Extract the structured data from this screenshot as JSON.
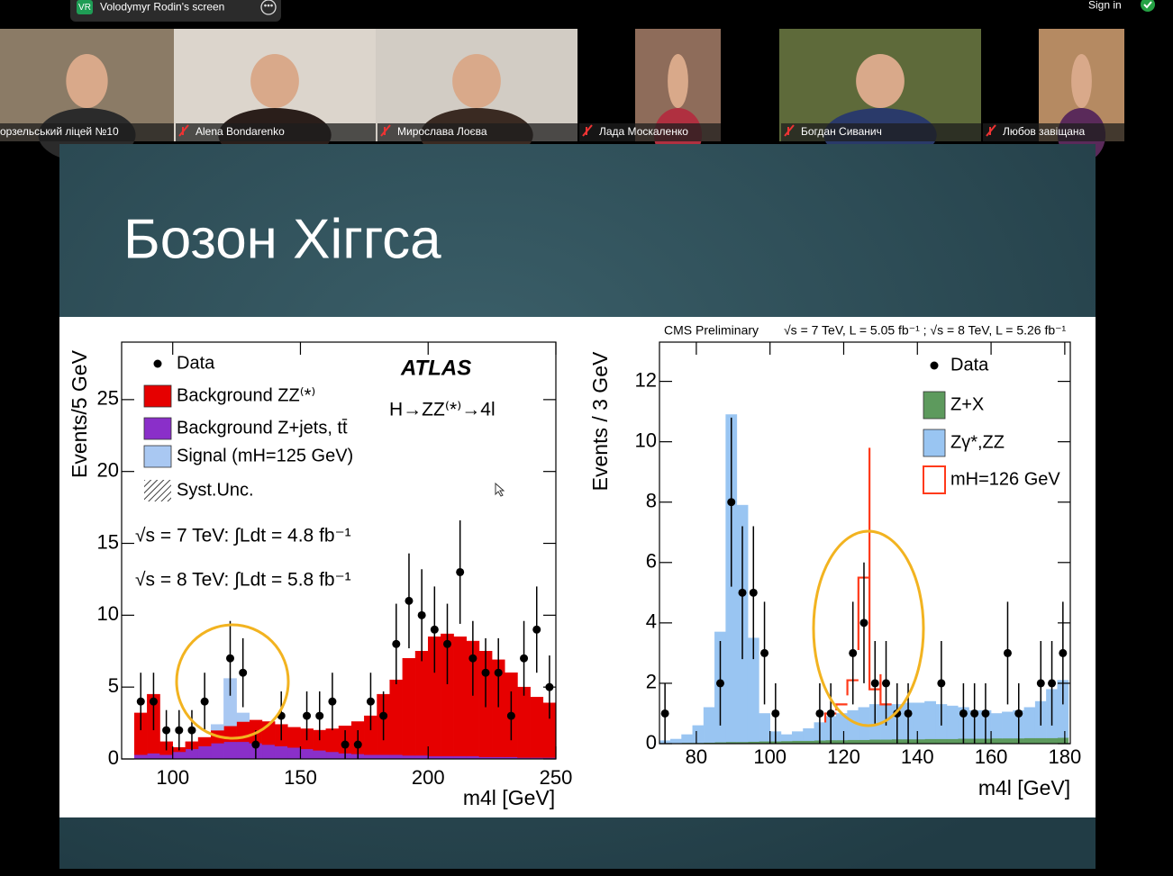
{
  "screen_share": {
    "initials": "VR",
    "name": "Volodymyr Rodin's screen"
  },
  "sign_in": "Sign in",
  "participants": [
    "орзельський ліцей №10",
    "Alena Bondarenko",
    "Мирослава Лоєва",
    "Лада Москаленко",
    "Богдан Сиванич",
    "Любов завіщана"
  ],
  "slide": {
    "title": "Бозон Хіггса"
  },
  "chart_data": [
    {
      "type": "stacked_histogram",
      "xlabel": "m4l [GeV]",
      "ylabel": "Events/5 GeV",
      "annotations": [
        "ATLAS",
        "H→ZZ⁽*⁾→4l",
        "√s = 7 TeV: ∫Ldt = 4.8 fb⁻¹",
        "√s = 8 TeV: ∫Ldt = 5.8 fb⁻¹"
      ],
      "uncertainty_label": "Syst.Unc.",
      "xlim": [
        80,
        250
      ],
      "xticks": [
        100,
        150,
        200,
        250
      ],
      "ylim": [
        0,
        29
      ],
      "yticks": [
        0,
        5,
        10,
        15,
        20,
        25
      ],
      "bins": [
        80,
        85,
        90,
        95,
        100,
        105,
        110,
        115,
        120,
        125,
        130,
        135,
        140,
        145,
        150,
        155,
        160,
        165,
        170,
        175,
        180,
        185,
        190,
        195,
        200,
        205,
        210,
        215,
        220,
        225,
        230,
        235,
        240,
        245,
        250
      ],
      "series": [
        {
          "name": "Background Z+jets, tt̄",
          "color": "#8a2fc9",
          "style": "filled",
          "values": [
            0,
            0.3,
            0.4,
            0.3,
            0.5,
            0.7,
            0.9,
            1.1,
            1.2,
            1.2,
            1.1,
            1.0,
            0.9,
            0.8,
            0.7,
            0.6,
            0.5,
            0.4,
            0.35,
            0.3,
            0.3,
            0.3,
            0.25,
            0.25,
            0.2,
            0.2,
            0.2,
            0.2,
            0.15,
            0.15,
            0.15,
            0.1,
            0.1,
            0.1
          ]
        },
        {
          "name": "Background ZZ⁽*⁾",
          "color": "#e60000",
          "style": "filled",
          "values": [
            0,
            2.9,
            4.1,
            0.9,
            0.3,
            0.5,
            0.6,
            0.9,
            1.1,
            1.4,
            1.6,
            1.6,
            1.5,
            1.4,
            1.4,
            1.4,
            1.6,
            1.9,
            2.25,
            2.7,
            4.2,
            5.2,
            6.75,
            7.25,
            8.3,
            8.5,
            8.3,
            8.0,
            7.35,
            6.75,
            5.85,
            4.9,
            4.2,
            3.8
          ]
        },
        {
          "name": "Signal (mH=125 GeV)",
          "color": "#a9c8f2",
          "style": "filled",
          "values": [
            0,
            0,
            0,
            0,
            0,
            0,
            0,
            0.4,
            3.3,
            0.6,
            0,
            0,
            0,
            0,
            0,
            0,
            0,
            0,
            0,
            0,
            0,
            0,
            0,
            0,
            0,
            0,
            0,
            0,
            0,
            0,
            0,
            0,
            0,
            0
          ]
        }
      ],
      "data_points": {
        "name": "Data",
        "x": [
          87.5,
          92.5,
          97.5,
          102.5,
          107.5,
          112.5,
          122.5,
          127.5,
          132.5,
          142.5,
          152.5,
          157.5,
          162.5,
          167.5,
          172.5,
          177.5,
          182.5,
          187.5,
          192.5,
          197.5,
          202.5,
          207.5,
          212.5,
          217.5,
          222.5,
          227.5,
          232.5,
          237.5,
          242.5,
          247.5
        ],
        "values": [
          4,
          4,
          2,
          2,
          2,
          4,
          7,
          6,
          1,
          3,
          3,
          3,
          4,
          1,
          1,
          4,
          3,
          8,
          11,
          10,
          9,
          8,
          13,
          7,
          6,
          6,
          3,
          7,
          9,
          5
        ],
        "errors": [
          2,
          2,
          1.4,
          1.4,
          1.4,
          2,
          2.6,
          2.4,
          1,
          1.7,
          1.7,
          1.7,
          2,
          1,
          1,
          2,
          1.7,
          2.8,
          3.3,
          3.2,
          3,
          2.8,
          3.6,
          2.6,
          2.4,
          2.4,
          1.7,
          2.6,
          3,
          2.2
        ]
      }
    },
    {
      "type": "stacked_histogram",
      "xlabel": "m4l [GeV]",
      "ylabel": "Events / 3 GeV",
      "annotations": [
        "CMS Preliminary",
        "√s = 7 TeV, L = 5.05 fb⁻¹ ; √s = 8 TeV, L = 5.26 fb⁻¹"
      ],
      "xlim": [
        70,
        181.5
      ],
      "xticks": [
        80,
        100,
        120,
        140,
        160,
        180
      ],
      "ylim": [
        0,
        13.3
      ],
      "yticks": [
        0,
        2,
        4,
        6,
        8,
        10,
        12
      ],
      "bins": [
        70,
        73,
        76,
        79,
        82,
        85,
        88,
        91,
        94,
        97,
        100,
        103,
        106,
        109,
        112,
        115,
        118,
        121,
        124,
        127,
        130,
        133,
        136,
        139,
        142,
        145,
        148,
        151,
        154,
        157,
        160,
        163,
        166,
        169,
        172,
        175,
        178,
        181
      ],
      "series": [
        {
          "name": "Z+X",
          "color": "#5d9a5d",
          "style": "filled",
          "values": [
            0.02,
            0.02,
            0.03,
            0.03,
            0.04,
            0.05,
            0.06,
            0.06,
            0.07,
            0.08,
            0.08,
            0.09,
            0.1,
            0.1,
            0.11,
            0.12,
            0.12,
            0.13,
            0.13,
            0.14,
            0.14,
            0.15,
            0.15,
            0.15,
            0.16,
            0.16,
            0.16,
            0.17,
            0.17,
            0.17,
            0.18,
            0.18,
            0.18,
            0.19,
            0.19,
            0.19,
            0.2
          ]
        },
        {
          "name": "Zγ*,ZZ",
          "color": "#99c5f2",
          "style": "filled",
          "values": [
            0.08,
            0.13,
            0.27,
            0.57,
            1.16,
            3.65,
            10.84,
            7.84,
            3.43,
            0.92,
            0.32,
            0.21,
            0.3,
            0.4,
            0.59,
            0.78,
            0.88,
            0.97,
            1.07,
            1.16,
            1.16,
            1.15,
            1.2,
            1.2,
            1.24,
            1.14,
            1.09,
            1.03,
            0.93,
            0.93,
            0.82,
            0.87,
            0.92,
            1.01,
            1.21,
            1.61,
            1.9
          ]
        },
        {
          "name": "mH=126 GeV",
          "color": "#ff3a1a",
          "style": "outline",
          "values": [
            0,
            0,
            0,
            0,
            0,
            0,
            0,
            0,
            0,
            0,
            0,
            0,
            0,
            0,
            0,
            0.1,
            0.3,
            1.0,
            4.3,
            0.5,
            0,
            0,
            0,
            0,
            0,
            0,
            0,
            0,
            0,
            0,
            0,
            0,
            0,
            0,
            0,
            0,
            0
          ]
        }
      ],
      "data_points": {
        "name": "Data",
        "x": [
          71.5,
          86.5,
          89.5,
          92.5,
          95.5,
          98.5,
          101.5,
          113.5,
          116.5,
          122.5,
          125.5,
          128.5,
          131.5,
          134.5,
          137.5,
          146.5,
          152.5,
          155.5,
          158.5,
          164.5,
          167.5,
          173.5,
          176.5,
          179.5
        ],
        "values": [
          1,
          2,
          8,
          5,
          5,
          3,
          1,
          1,
          1,
          3,
          4,
          2,
          2,
          1,
          1,
          2,
          1,
          1,
          1,
          3,
          1,
          2,
          2,
          3
        ],
        "errors": [
          1,
          1.4,
          2.8,
          2.2,
          2.2,
          1.7,
          1,
          1,
          1,
          1.7,
          2,
          1.4,
          1.4,
          1,
          1,
          1.4,
          1,
          1,
          1,
          1.7,
          1,
          1.4,
          1.4,
          1.7
        ]
      }
    }
  ]
}
